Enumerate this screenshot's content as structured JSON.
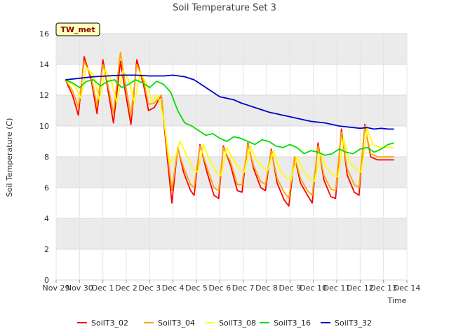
{
  "chart_data": {
    "type": "line",
    "title": "Soil Temperature Set 3",
    "xlabel": "Time",
    "ylabel": "Soil Temperature (C)",
    "station_label": "TW_met",
    "xlim": [
      0,
      15
    ],
    "ylim": [
      0,
      16
    ],
    "x_ticks": [
      {
        "x": 0,
        "label": "Nov 29"
      },
      {
        "x": 1,
        "label": "Nov 30"
      },
      {
        "x": 2,
        "label": "Dec 1"
      },
      {
        "x": 3,
        "label": "Dec 2"
      },
      {
        "x": 4,
        "label": "Dec 3"
      },
      {
        "x": 5,
        "label": "Dec 4"
      },
      {
        "x": 6,
        "label": "Dec 5"
      },
      {
        "x": 7,
        "label": "Dec 6"
      },
      {
        "x": 8,
        "label": "Dec 7"
      },
      {
        "x": 9,
        "label": "Dec 8"
      },
      {
        "x": 10,
        "label": "Dec 9"
      },
      {
        "x": 11,
        "label": "Dec 10"
      },
      {
        "x": 12,
        "label": "Dec 11"
      },
      {
        "x": 13,
        "label": "Dec 12"
      },
      {
        "x": 14,
        "label": "Dec 13"
      },
      {
        "x": 15,
        "label": "Dec 14"
      }
    ],
    "y_ticks": [
      0,
      2,
      4,
      6,
      8,
      10,
      12,
      14,
      16
    ],
    "grid": true,
    "legend_position": "bottom",
    "series": [
      {
        "name": "SoilT3_02",
        "color": "#ff0000",
        "x": [
          0.4,
          0.7,
          0.95,
          1.2,
          1.5,
          1.75,
          2.0,
          2.2,
          2.45,
          2.75,
          2.95,
          3.2,
          3.45,
          3.75,
          3.95,
          4.2,
          4.5,
          4.75,
          4.95,
          5.2,
          5.45,
          5.75,
          5.9,
          6.15,
          6.45,
          6.75,
          6.95,
          7.15,
          7.45,
          7.75,
          7.95,
          8.2,
          8.45,
          8.75,
          8.95,
          9.2,
          9.45,
          9.75,
          9.95,
          10.2,
          10.45,
          10.75,
          10.95,
          11.2,
          11.45,
          11.75,
          11.95,
          12.2,
          12.45,
          12.75,
          12.95,
          13.2,
          13.45,
          13.75,
          13.95,
          14.2,
          14.45
        ],
        "y": [
          13.0,
          12.0,
          10.7,
          14.5,
          13.0,
          10.8,
          14.3,
          12.5,
          10.2,
          14.2,
          12.3,
          10.1,
          14.3,
          12.6,
          11.0,
          11.2,
          12.0,
          8.0,
          5.0,
          8.6,
          7.0,
          5.8,
          5.5,
          8.8,
          7.0,
          5.5,
          5.3,
          8.7,
          7.5,
          5.8,
          5.7,
          8.9,
          7.2,
          6.0,
          5.8,
          8.5,
          6.3,
          5.2,
          4.8,
          8.0,
          6.3,
          5.5,
          5.0,
          8.9,
          6.5,
          5.4,
          5.3,
          9.8,
          6.8,
          5.7,
          5.5,
          10.1,
          8.0,
          7.8,
          7.8,
          7.8,
          7.8
        ]
      },
      {
        "name": "SoilT3_04",
        "color": "#ffa500",
        "x": [
          0.4,
          0.7,
          0.95,
          1.2,
          1.5,
          1.75,
          2.0,
          2.2,
          2.45,
          2.75,
          2.95,
          3.2,
          3.45,
          3.75,
          3.95,
          4.2,
          4.5,
          4.75,
          4.95,
          5.2,
          5.45,
          5.75,
          5.9,
          6.15,
          6.45,
          6.75,
          6.95,
          7.15,
          7.45,
          7.75,
          7.95,
          8.2,
          8.45,
          8.75,
          8.95,
          9.2,
          9.45,
          9.75,
          9.95,
          10.2,
          10.45,
          10.75,
          10.95,
          11.2,
          11.45,
          11.75,
          11.95,
          12.2,
          12.45,
          12.75,
          12.95,
          13.2,
          13.45,
          13.75,
          13.95,
          14.2,
          14.45
        ],
        "y": [
          13.0,
          12.3,
          11.2,
          14.2,
          13.2,
          11.3,
          14.0,
          12.8,
          10.8,
          14.8,
          12.8,
          10.7,
          14.0,
          12.9,
          11.4,
          11.5,
          12.0,
          8.4,
          5.8,
          8.5,
          7.3,
          6.2,
          6.0,
          8.7,
          7.3,
          6.0,
          5.8,
          8.6,
          7.7,
          6.2,
          6.2,
          8.8,
          7.4,
          6.4,
          6.2,
          8.4,
          6.6,
          5.7,
          5.3,
          8.0,
          6.6,
          5.8,
          5.5,
          8.7,
          6.8,
          5.9,
          5.8,
          9.6,
          7.2,
          6.2,
          6.0,
          10.0,
          8.2,
          8.0,
          8.0,
          8.0,
          8.0
        ]
      },
      {
        "name": "SoilT3_08",
        "color": "#ffff00",
        "x": [
          0.4,
          0.8,
          1.05,
          1.3,
          1.6,
          1.85,
          2.1,
          2.35,
          2.6,
          2.85,
          3.1,
          3.35,
          3.6,
          3.85,
          4.1,
          4.35,
          4.6,
          4.85,
          5.1,
          5.3,
          5.55,
          5.85,
          6.05,
          6.3,
          6.55,
          6.85,
          7.05,
          7.3,
          7.55,
          7.85,
          8.05,
          8.3,
          8.55,
          8.85,
          9.05,
          9.3,
          9.55,
          9.85,
          10.05,
          10.3,
          10.55,
          10.85,
          11.05,
          11.3,
          11.55,
          11.85,
          12.05,
          12.3,
          12.55,
          12.85,
          13.05,
          13.3,
          13.55,
          13.85,
          14.05,
          14.3,
          14.45
        ],
        "y": [
          13.0,
          12.6,
          11.8,
          13.8,
          13.3,
          11.7,
          13.7,
          13.0,
          11.5,
          13.6,
          13.0,
          11.5,
          13.5,
          12.8,
          11.6,
          12.0,
          10.5,
          7.6,
          8.0,
          9.0,
          8.2,
          7.2,
          7.0,
          8.8,
          7.8,
          7.0,
          6.8,
          8.6,
          7.9,
          7.2,
          7.0,
          8.7,
          7.8,
          7.3,
          7.1,
          8.4,
          7.2,
          6.6,
          6.5,
          8.0,
          7.1,
          6.6,
          6.4,
          8.3,
          7.3,
          6.8,
          6.7,
          9.2,
          7.6,
          7.2,
          7.0,
          9.8,
          8.8,
          8.6,
          8.6,
          8.6,
          8.6
        ]
      },
      {
        "name": "SoilT3_16",
        "color": "#00dd00",
        "x": [
          0.4,
          0.7,
          1.0,
          1.3,
          1.6,
          1.9,
          2.2,
          2.5,
          2.8,
          3.1,
          3.4,
          3.7,
          4.0,
          4.3,
          4.6,
          4.9,
          5.2,
          5.5,
          5.8,
          6.1,
          6.4,
          6.7,
          7.0,
          7.3,
          7.6,
          7.9,
          8.2,
          8.5,
          8.8,
          9.1,
          9.4,
          9.7,
          10.0,
          10.3,
          10.6,
          10.9,
          11.2,
          11.5,
          11.8,
          12.1,
          12.4,
          12.7,
          13.0,
          13.3,
          13.6,
          13.9,
          14.2,
          14.45
        ],
        "y": [
          13.0,
          12.8,
          12.5,
          12.9,
          13.0,
          12.6,
          12.9,
          13.0,
          12.5,
          12.7,
          13.0,
          12.8,
          12.5,
          12.9,
          12.7,
          12.2,
          11.0,
          10.2,
          10.0,
          9.7,
          9.4,
          9.5,
          9.2,
          9.0,
          9.3,
          9.2,
          9.0,
          8.8,
          9.1,
          9.0,
          8.7,
          8.6,
          8.8,
          8.6,
          8.2,
          8.4,
          8.3,
          8.1,
          8.2,
          8.5,
          8.3,
          8.2,
          8.5,
          8.6,
          8.3,
          8.5,
          8.8,
          8.9
        ]
      },
      {
        "name": "SoilT3_32",
        "color": "#0000cc",
        "x": [
          0.4,
          1.0,
          1.6,
          2.2,
          2.8,
          3.4,
          4.0,
          4.6,
          5.0,
          5.5,
          5.9,
          6.3,
          6.7,
          7.0,
          7.3,
          7.6,
          7.9,
          8.2,
          8.5,
          8.8,
          9.1,
          9.4,
          9.7,
          10.0,
          10.3,
          10.6,
          10.9,
          11.2,
          11.5,
          11.8,
          12.1,
          12.4,
          12.7,
          13.0,
          13.3,
          13.6,
          13.9,
          14.2,
          14.45
        ],
        "y": [
          13.0,
          13.1,
          13.2,
          13.25,
          13.3,
          13.3,
          13.25,
          13.25,
          13.3,
          13.2,
          13.0,
          12.6,
          12.2,
          11.9,
          11.8,
          11.7,
          11.5,
          11.35,
          11.2,
          11.05,
          10.9,
          10.8,
          10.7,
          10.6,
          10.5,
          10.4,
          10.3,
          10.25,
          10.2,
          10.1,
          10.0,
          9.95,
          9.9,
          9.85,
          9.9,
          9.8,
          9.85,
          9.8,
          9.8
        ]
      }
    ]
  }
}
